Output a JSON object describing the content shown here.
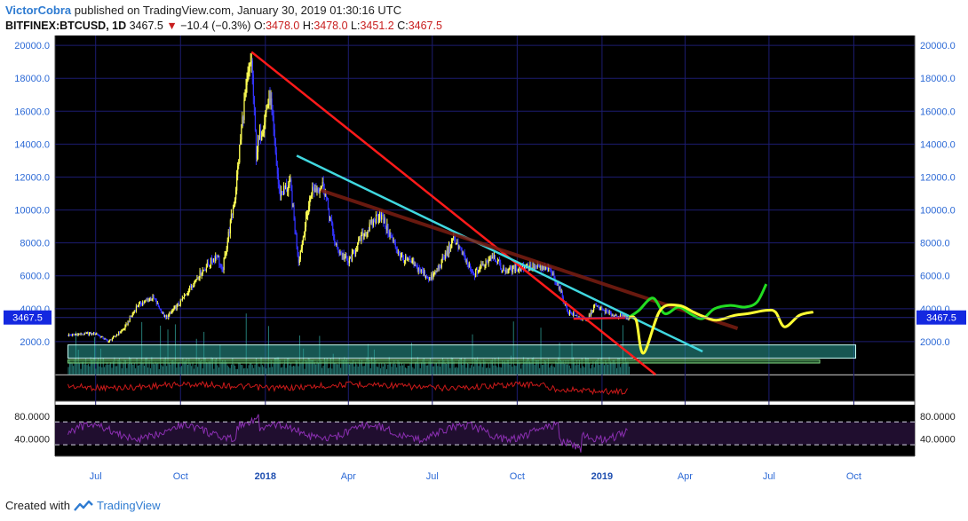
{
  "header": {
    "author": "VictorCobra",
    "published": "published on TradingView.com, January 30, 2019 01:30:16 UTC",
    "symbol": "BITFINEX:BTCUSD, 1D",
    "last": "3467.5",
    "change": "−10.4 (−0.3%)",
    "o_label": "O:",
    "o_value": "3478.0",
    "h_label": "H:",
    "h_value": "3478.0",
    "l_label": "L:",
    "l_value": "3451.2",
    "c_label": "C:",
    "c_value": "3467.5"
  },
  "footer": {
    "created_with": "Created with",
    "brand": "TradingView"
  },
  "colors": {
    "background": "#000000",
    "grid": "#1c1c70",
    "axis_text": "#2d6ad6",
    "price_badge": "#1428e0",
    "candle_up": "#ffff55",
    "candle_down": "#3333ff",
    "resistance_main": "#ff1a1a",
    "support_cyan": "#40d8e0",
    "resistance_brown": "#7a1d12",
    "projection_green": "#22dd22",
    "projection_yellow": "#ffff33",
    "volume": "#2a8f88",
    "indicator_red": "#cc1a1a",
    "rsi": "#8a2fb0"
  },
  "chart_data": {
    "type": "candlestick",
    "symbol": "BITFINEX:BTCUSD",
    "interval": "1D",
    "last_price": 3467.5,
    "price_axis": {
      "ticks": [
        "20000.0",
        "18000.0",
        "16000.0",
        "14000.0",
        "12000.0",
        "10000.0",
        "8000.0",
        "6000.0",
        "4000.0",
        "2000.0"
      ],
      "range": [
        0,
        20600
      ]
    },
    "time_axis": {
      "ticks": [
        "Jul",
        "Oct",
        "2018",
        "Apr",
        "Jul",
        "Oct",
        "2019",
        "Apr",
        "Jul",
        "Oct"
      ],
      "bold_ticks": [
        "2018",
        "2019"
      ]
    },
    "price_path": [
      [
        "2017-06-01",
        2400
      ],
      [
        "2017-07-01",
        2500
      ],
      [
        "2017-07-15",
        2000
      ],
      [
        "2017-08-01",
        2800
      ],
      [
        "2017-08-15",
        4200
      ],
      [
        "2017-09-01",
        4700
      ],
      [
        "2017-09-15",
        3400
      ],
      [
        "2017-10-01",
        4400
      ],
      [
        "2017-10-20",
        6000
      ],
      [
        "2017-11-10",
        7300
      ],
      [
        "2017-11-15",
        6200
      ],
      [
        "2017-11-29",
        10800
      ],
      [
        "2017-12-08",
        16000
      ],
      [
        "2017-12-17",
        19200
      ],
      [
        "2017-12-22",
        13500
      ],
      [
        "2018-01-06",
        17000
      ],
      [
        "2018-01-16",
        11000
      ],
      [
        "2018-01-28",
        11500
      ],
      [
        "2018-02-06",
        6900
      ],
      [
        "2018-02-20",
        11200
      ],
      [
        "2018-03-05",
        11500
      ],
      [
        "2018-03-18",
        7800
      ],
      [
        "2018-04-01",
        6800
      ],
      [
        "2018-04-15",
        8300
      ],
      [
        "2018-05-05",
        9800
      ],
      [
        "2018-05-28",
        7100
      ],
      [
        "2018-06-10",
        6700
      ],
      [
        "2018-06-29",
        5800
      ],
      [
        "2018-07-10",
        6700
      ],
      [
        "2018-07-25",
        8300
      ],
      [
        "2018-08-14",
        6000
      ],
      [
        "2018-09-05",
        7300
      ],
      [
        "2018-09-15",
        6300
      ],
      [
        "2018-10-10",
        6600
      ],
      [
        "2018-11-05",
        6400
      ],
      [
        "2018-11-14",
        5500
      ],
      [
        "2018-11-25",
        3800
      ],
      [
        "2018-12-15",
        3250
      ],
      [
        "2018-12-24",
        4200
      ],
      [
        "2019-01-10",
        3650
      ],
      [
        "2019-01-30",
        3467.5
      ]
    ],
    "lines": [
      {
        "type": "trendline",
        "color": "red",
        "from": [
          "2017-12-17",
          19600
        ],
        "to": [
          "2019-02-28",
          0
        ]
      },
      {
        "type": "trendline",
        "color": "cyan",
        "from": [
          "2018-02-04",
          13300
        ],
        "to": [
          "2019-04-20",
          1400
        ]
      },
      {
        "type": "trendline",
        "color": "brown",
        "from": [
          "2018-03-02",
          11200
        ],
        "to": [
          "2019-05-28",
          2800
        ]
      },
      {
        "type": "trendline",
        "color": "red",
        "from": [
          "2018-12-01",
          3400
        ],
        "to": [
          "2019-01-26",
          3450
        ]
      }
    ],
    "projection_green": [
      [
        "2019-01-30",
        3467.5
      ],
      [
        "2019-02-10",
        3900
      ],
      [
        "2019-02-25",
        4650
      ],
      [
        "2019-03-10",
        3700
      ],
      [
        "2019-03-25",
        4100
      ],
      [
        "2019-04-08",
        3650
      ],
      [
        "2019-04-20",
        3400
      ],
      [
        "2019-05-03",
        4000
      ],
      [
        "2019-05-20",
        4200
      ],
      [
        "2019-06-05",
        4100
      ],
      [
        "2019-06-18",
        4400
      ],
      [
        "2019-06-28",
        5500
      ]
    ],
    "projection_yellow": [
      [
        "2019-01-30",
        3467.5
      ],
      [
        "2019-02-07",
        3300
      ],
      [
        "2019-02-15",
        1300
      ],
      [
        "2019-03-05",
        3900
      ],
      [
        "2019-03-25",
        4200
      ],
      [
        "2019-04-10",
        3800
      ],
      [
        "2019-04-20",
        3550
      ],
      [
        "2019-05-05",
        3300
      ],
      [
        "2019-05-25",
        3600
      ],
      [
        "2019-06-08",
        3700
      ],
      [
        "2019-06-28",
        3900
      ],
      [
        "2019-07-08",
        3800
      ],
      [
        "2019-07-18",
        2900
      ],
      [
        "2019-08-03",
        3600
      ],
      [
        "2019-08-18",
        3800
      ]
    ],
    "zones": [
      {
        "type": "rectangle",
        "from": [
          "2017-06-01",
          1800
        ],
        "to": [
          "2019-10-03",
          1000
        ]
      },
      {
        "type": "rectangle",
        "from": [
          "2017-06-01",
          900
        ],
        "to": [
          "2019-08-25",
          700
        ]
      }
    ],
    "rsi": {
      "ticks": [
        "80.0000",
        "40.0000"
      ],
      "range": [
        10,
        100
      ],
      "bands": [
        70,
        30
      ]
    }
  }
}
